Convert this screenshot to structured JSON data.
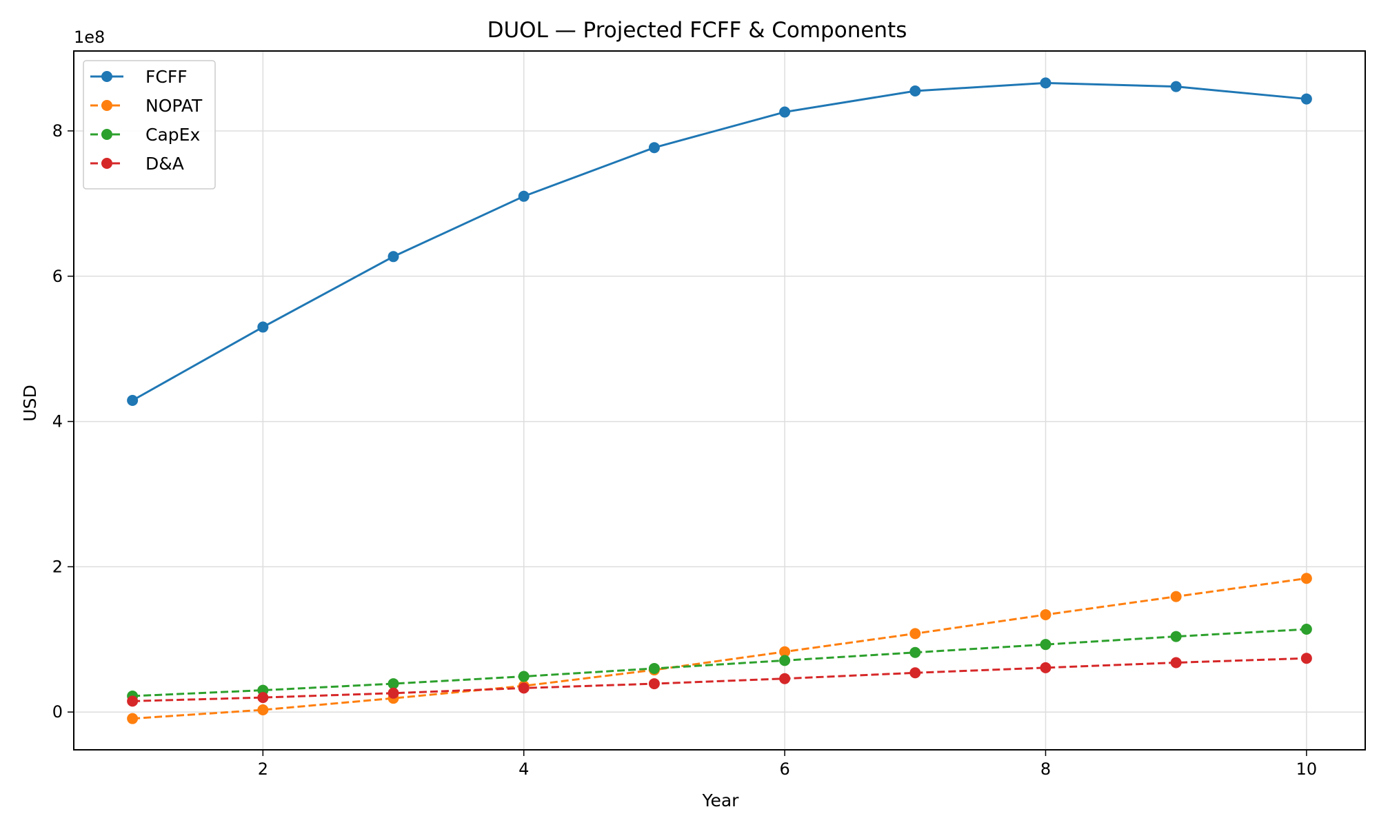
{
  "chart_data": {
    "type": "line",
    "title": "DUOL — Projected FCFF & Components",
    "xlabel": "Year",
    "ylabel": "USD",
    "y_offset_label": "1e8",
    "x": [
      1,
      2,
      3,
      4,
      5,
      6,
      7,
      8,
      9,
      10
    ],
    "xlim": [
      0.55,
      10.45
    ],
    "ylim": [
      -0.52,
      9.1
    ],
    "xticks": [
      2,
      4,
      6,
      8,
      10
    ],
    "yticks": [
      0,
      2,
      4,
      6,
      8
    ],
    "grid": true,
    "legend_position": "top-left",
    "series": [
      {
        "name": "FCFF",
        "color": "#1f77b4",
        "style": "solid",
        "values": [
          4.29,
          5.3,
          6.27,
          7.1,
          7.77,
          8.26,
          8.55,
          8.66,
          8.61,
          8.44
        ]
      },
      {
        "name": "NOPAT",
        "color": "#ff7f0e",
        "style": "dashed",
        "values": [
          -0.09,
          0.03,
          0.19,
          0.36,
          0.58,
          0.83,
          1.08,
          1.34,
          1.59,
          1.84
        ]
      },
      {
        "name": "CapEx",
        "color": "#2ca02c",
        "style": "dashed",
        "values": [
          0.22,
          0.3,
          0.39,
          0.49,
          0.6,
          0.71,
          0.82,
          0.93,
          1.04,
          1.14
        ]
      },
      {
        "name": "D&A",
        "color": "#d62728",
        "style": "dashed",
        "values": [
          0.15,
          0.2,
          0.26,
          0.33,
          0.39,
          0.46,
          0.54,
          0.61,
          0.68,
          0.74
        ]
      }
    ]
  }
}
